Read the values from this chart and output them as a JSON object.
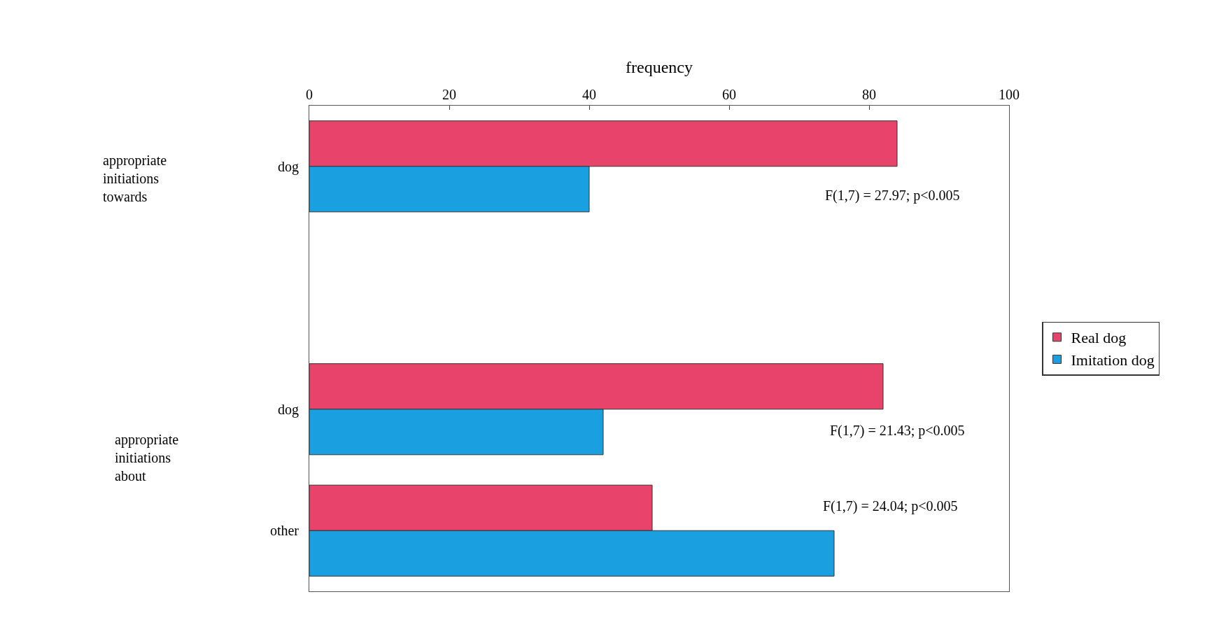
{
  "chart_data": {
    "type": "bar",
    "orientation": "horizontal",
    "xlabel": "frequency",
    "categories": [
      "dog",
      null,
      "dog",
      "other"
    ],
    "series": [
      {
        "name": "Real dog",
        "color": "#e8436a",
        "values": [
          84,
          null,
          82,
          49
        ]
      },
      {
        "name": "Imitation dog",
        "color": "#1aa0e0",
        "values": [
          40,
          null,
          42,
          75
        ]
      }
    ],
    "xlim": [
      0,
      100
    ],
    "xticks": [
      0,
      20,
      40,
      60,
      80,
      100
    ],
    "legend": "right",
    "annotations": [
      "appropriate initiations towards",
      "appropriate initiations about",
      "F(1,7) = 27.97; p<0.005",
      "F(1,7) = 21.43; p<0.005",
      "F(1,7) = 24.04; p<0.005"
    ]
  }
}
